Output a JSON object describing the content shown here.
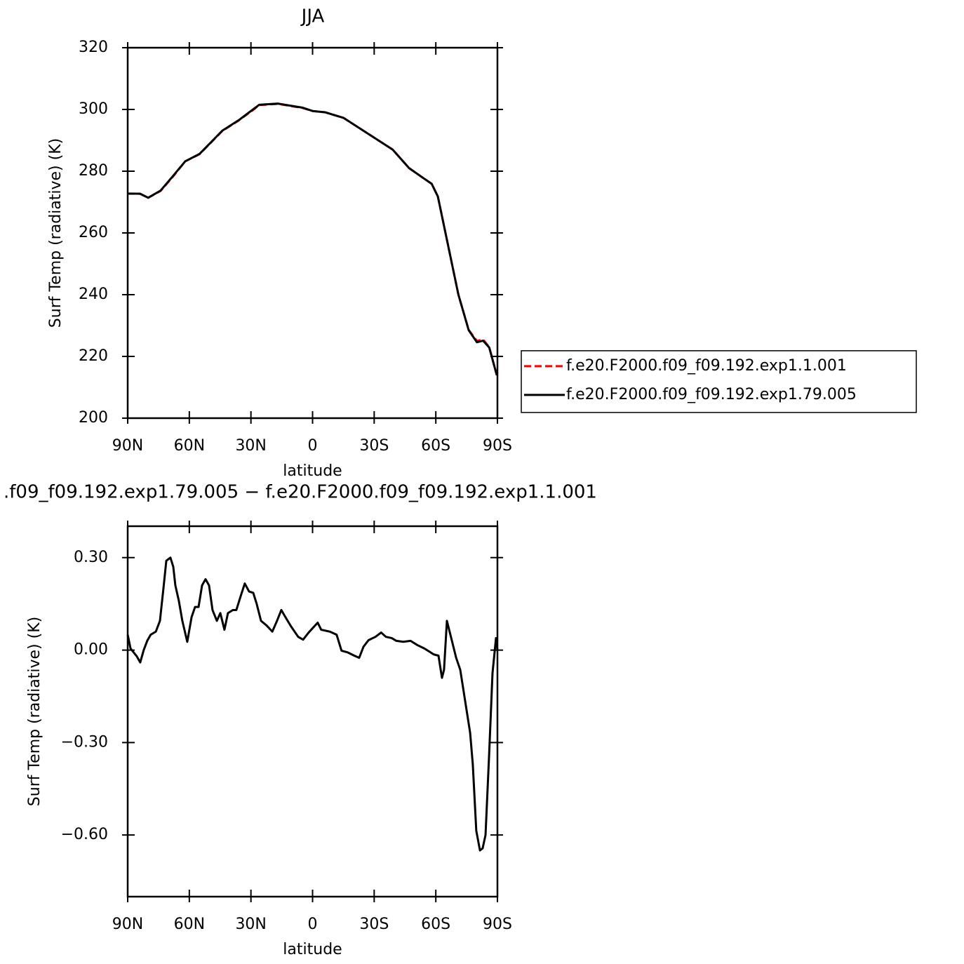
{
  "chart_data": [
    {
      "type": "line",
      "title": "JJA",
      "x_label": "latitude",
      "y_label": "Surf Temp (radiative) (K)",
      "x": [
        90,
        84,
        80,
        74,
        68,
        62,
        55,
        50,
        44,
        36,
        29,
        26,
        17,
        5,
        0,
        -6,
        -15,
        -32,
        -39,
        -47,
        -53,
        -58,
        -61,
        -66,
        -71,
        -76,
        -80,
        -83,
        -86,
        -89.7
      ],
      "series": [
        {
          "name": "f.e20.F2000.f09_f09.192.exp1.1.001",
          "color": "#ff0000",
          "line_style": "dashed",
          "values": [
            272.7,
            272.7,
            271.4,
            273.6,
            278.2,
            283.2,
            285.5,
            288.9,
            293,
            296.4,
            299.8,
            301.4,
            301.8,
            300.5,
            299.5,
            299.1,
            297.3,
            290,
            287,
            281,
            278.2,
            275.9,
            271.8,
            255.9,
            240,
            228.6,
            225,
            225.5,
            223,
            213.9
          ]
        },
        {
          "name": "f.e20.F2000.f09_f09.192.exp1.79.005",
          "color": "#000000",
          "line_style": "solid",
          "values": [
            272.75,
            272.7,
            271.4,
            273.7,
            278.4,
            283.2,
            285.6,
            289,
            293.1,
            296.5,
            300,
            301.5,
            301.9,
            300.6,
            299.5,
            299.1,
            297.3,
            290,
            287,
            281,
            278.2,
            275.9,
            271.8,
            255.9,
            240,
            228.5,
            224.6,
            225.1,
            222.9,
            213.9
          ]
        }
      ],
      "xlim": [
        90,
        -90
      ],
      "xticks": [
        {
          "value": 90,
          "label": "90N"
        },
        {
          "value": 60,
          "label": "60N"
        },
        {
          "value": 30,
          "label": "30N"
        },
        0,
        {
          "value": -30,
          "label": "30S"
        },
        {
          "value": -60,
          "label": "60S"
        },
        {
          "value": -90,
          "label": "90S"
        }
      ],
      "ylim": [
        200,
        320
      ],
      "yticks": [
        200,
        220,
        240,
        260,
        280,
        300,
        320
      ],
      "legend_position": "right"
    },
    {
      "type": "line",
      "title": ".f09_f09.192.exp1.79.005 − f.e20.F2000.f09_f09.192.exp1.1.001",
      "x_label": "latitude",
      "y_label": "Surf Temp (radiative) (K)",
      "x": [
        90,
        88.6,
        85.6,
        83.9,
        82.2,
        80.5,
        78.8,
        76.3,
        74.3,
        72.6,
        71.2,
        70.2,
        69.2,
        67.8,
        66.8,
        65.1,
        63.4,
        61,
        58.9,
        57.2,
        55.5,
        53.8,
        52.1,
        50.4,
        48.7,
        46.6,
        44.9,
        42.9,
        41.2,
        38.8,
        37.1,
        35,
        33,
        30.9,
        28.9,
        27.2,
        25.1,
        22.4,
        19.6,
        17.3,
        15.2,
        13.2,
        10.5,
        7,
        4.6,
        1.9,
        -2.5,
        -4.2,
        -8.4,
        -11.7,
        -14.1,
        -16.9,
        -20.3,
        -22.7,
        -24.8,
        -27.2,
        -30.6,
        -33.4,
        -35.7,
        -38.5,
        -40.8,
        -44.2,
        -47.7,
        -51.1,
        -54.5,
        -59,
        -61.3,
        -63,
        -64,
        -65.4,
        -67.1,
        -69.9,
        -71.9,
        -74.3,
        -76.7,
        -78,
        -79.7,
        -81.5,
        -82.8,
        -84.2,
        -85.9,
        -87.6,
        -89.3,
        -90
      ],
      "series": [
        {
          "color": "#000000",
          "line_style": "solid",
          "values": [
            0.05,
            0.005,
            -0.02,
            -0.04,
            0,
            0.03,
            0.05,
            0.06,
            0.095,
            0.2,
            0.29,
            0.295,
            0.3,
            0.27,
            0.21,
            0.16,
            0.095,
            0.027,
            0.107,
            0.14,
            0.14,
            0.21,
            0.23,
            0.21,
            0.13,
            0.095,
            0.12,
            0.066,
            0.12,
            0.13,
            0.13,
            0.175,
            0.216,
            0.19,
            0.186,
            0.15,
            0.095,
            0.08,
            0.06,
            0.095,
            0.13,
            0.107,
            0.077,
            0.043,
            0.034,
            0.057,
            0.089,
            0.066,
            0.06,
            0.05,
            -0.002,
            -0.007,
            -0.018,
            -0.025,
            0.011,
            0.032,
            0.043,
            0.057,
            0.043,
            0.039,
            0.03,
            0.027,
            0.03,
            0.016,
            0.005,
            -0.014,
            -0.018,
            -0.09,
            -0.064,
            0.095,
            0.05,
            -0.025,
            -0.064,
            -0.166,
            -0.268,
            -0.37,
            -0.586,
            -0.65,
            -0.643,
            -0.6,
            -0.348,
            -0.075,
            0.039,
            0
          ]
        }
      ],
      "xlim": [
        90,
        -90
      ],
      "xticks": [
        {
          "value": 90,
          "label": "90N"
        },
        {
          "value": 60,
          "label": "60N"
        },
        {
          "value": 30,
          "label": "30N"
        },
        0,
        {
          "value": -30,
          "label": "30S"
        },
        {
          "value": -60,
          "label": "60S"
        },
        {
          "value": -90,
          "label": "90S"
        }
      ],
      "ylim": [
        -0.8,
        0.402
      ],
      "yticks": [
        {
          "value": -0.6,
          "label": "−0.60"
        },
        {
          "value": -0.3,
          "label": "−0.30"
        },
        {
          "value": 0,
          "label": "0.00"
        },
        {
          "value": 0.3,
          "label": "0.30"
        }
      ]
    }
  ]
}
